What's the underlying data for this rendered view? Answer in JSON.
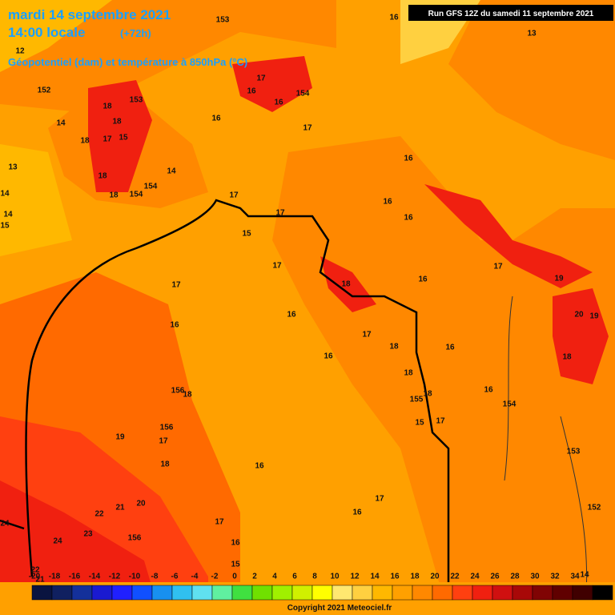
{
  "header": {
    "date": "mardi 14 septembre 2021",
    "time": "14:00 locale",
    "lead": "(+72h)",
    "subtitle": "Géopotentiel (dam) et température à 850hPa (°C)",
    "run": "Run GFS 12Z du samedi 11 septembre 2021"
  },
  "legend": {
    "ticks": [
      -20,
      -18,
      -16,
      -14,
      -12,
      -10,
      -8,
      -6,
      -4,
      -2,
      0,
      2,
      4,
      6,
      8,
      10,
      12,
      14,
      16,
      18,
      20,
      22,
      24,
      26,
      28,
      30,
      32,
      34
    ],
    "colors": [
      "#0a1440",
      "#102060",
      "#14309a",
      "#1a1ad0",
      "#2020ff",
      "#1050ff",
      "#1890f0",
      "#30c0f0",
      "#60e0f0",
      "#60f0a0",
      "#40e040",
      "#70e000",
      "#a0f000",
      "#d0f000",
      "#ffff00",
      "#ffe870",
      "#ffd040",
      "#ffb800",
      "#ffa000",
      "#ff8800",
      "#ff6a00",
      "#ff4010",
      "#f02010",
      "#d01010",
      "#a80808",
      "#800404",
      "#600000",
      "#400000",
      "#000000"
    ]
  },
  "map_labels": {
    "temperature": [
      16,
      13,
      12,
      18,
      18,
      17,
      15,
      18,
      18,
      18,
      14,
      13,
      14,
      14,
      15,
      14,
      16,
      17,
      16,
      16,
      17,
      16,
      16,
      16,
      17,
      17,
      15,
      17,
      18,
      16,
      17,
      19,
      20,
      19,
      18,
      17,
      16,
      16,
      16,
      17,
      18,
      18,
      16,
      16,
      18,
      15,
      17,
      18,
      19,
      17,
      18,
      16,
      17,
      16,
      20,
      21,
      22,
      24,
      23,
      24,
      17,
      16,
      15,
      22,
      21,
      14
    ],
    "geopotential": [
      153,
      152,
      153,
      154,
      154,
      154,
      156,
      156,
      155,
      154,
      153,
      152,
      156
    ]
  },
  "copyright": "Copyright 2021 Meteociel.fr"
}
